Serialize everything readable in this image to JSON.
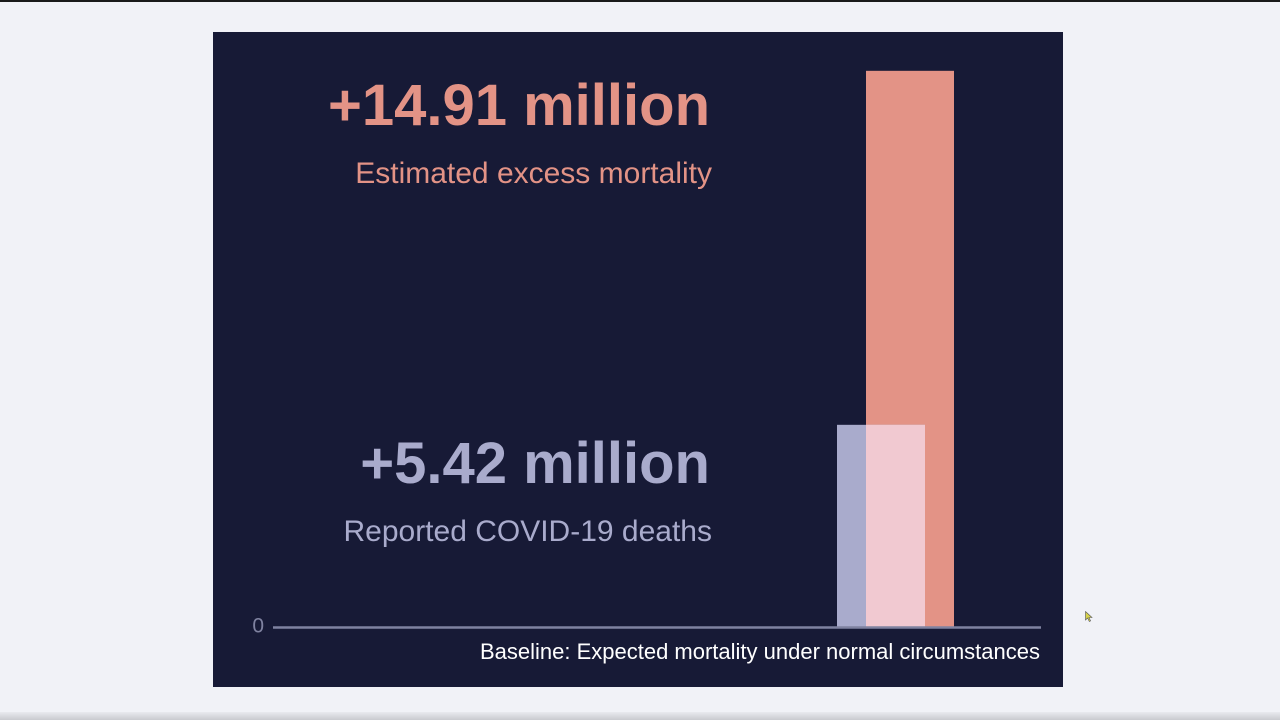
{
  "colors": {
    "page_background": "#f1f2f7",
    "panel_background": "#171a36",
    "excess_color": "#e39386",
    "reported_color": "#a9abcc",
    "overlap_color": "#f1c9d1",
    "axis_color": "#7f82a0",
    "baseline_text_color": "#ffffff"
  },
  "chart_data": {
    "type": "bar",
    "units": "million",
    "series": [
      {
        "name": "Estimated excess mortality",
        "value": 14.91,
        "label": "+14.91 million",
        "color": "#e39386"
      },
      {
        "name": "Reported COVID-19 deaths",
        "value": 5.42,
        "label": "+5.42 million",
        "color": "#a9abcc"
      }
    ],
    "yaxis": {
      "min": 0,
      "max": 15.2,
      "ticks": [
        {
          "value": 0,
          "label": "0"
        }
      ]
    },
    "baseline_label": "Baseline: Expected mortality under normal circumstances",
    "grid": false,
    "legend": "none"
  }
}
